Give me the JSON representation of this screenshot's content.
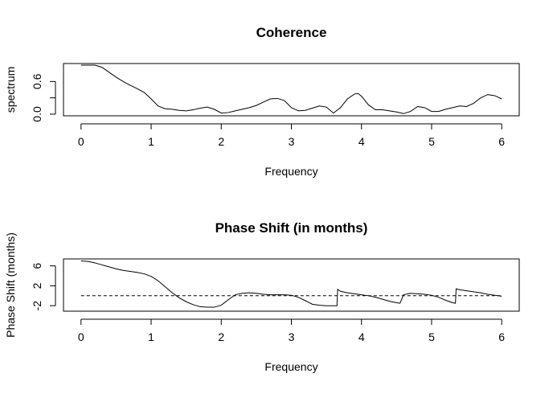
{
  "chart_data": [
    {
      "type": "line",
      "title": "Coherence",
      "xlabel": "Frequency",
      "ylabel": "spectrum",
      "xlim": [
        -0.25,
        6.25
      ],
      "ylim": [
        -0.03,
        0.93
      ],
      "xticks": [
        0,
        1,
        2,
        3,
        4,
        5,
        6
      ],
      "yticks": [
        0.0,
        0.3,
        0.6
      ],
      "ytick_labels": [
        "0.0",
        "",
        "0.6"
      ],
      "grid": false,
      "legend": "none",
      "series": [
        {
          "color": "#000000",
          "style": "solid",
          "x": [
            0.0,
            0.1,
            0.2,
            0.3,
            0.4,
            0.5,
            0.6,
            0.7,
            0.8,
            0.9,
            1.0,
            1.1,
            1.2,
            1.3,
            1.4,
            1.5,
            1.6,
            1.7,
            1.8,
            1.9,
            2.0,
            2.1,
            2.2,
            2.3,
            2.4,
            2.5,
            2.6,
            2.7,
            2.8,
            2.9,
            3.0,
            3.1,
            3.2,
            3.3,
            3.4,
            3.5,
            3.6,
            3.7,
            3.8,
            3.9,
            3.95,
            4.0,
            4.1,
            4.2,
            4.3,
            4.4,
            4.5,
            4.6,
            4.7,
            4.8,
            4.9,
            5.0,
            5.1,
            5.2,
            5.3,
            5.4,
            5.5,
            5.6,
            5.7,
            5.8,
            5.9,
            6.0
          ],
          "y": [
            0.9,
            0.9,
            0.9,
            0.86,
            0.77,
            0.68,
            0.6,
            0.53,
            0.47,
            0.4,
            0.28,
            0.15,
            0.1,
            0.09,
            0.07,
            0.06,
            0.08,
            0.11,
            0.13,
            0.09,
            0.02,
            0.03,
            0.06,
            0.09,
            0.12,
            0.16,
            0.22,
            0.28,
            0.29,
            0.25,
            0.12,
            0.06,
            0.07,
            0.11,
            0.15,
            0.13,
            0.02,
            0.12,
            0.28,
            0.37,
            0.38,
            0.33,
            0.17,
            0.08,
            0.08,
            0.06,
            0.04,
            0.01,
            0.05,
            0.14,
            0.12,
            0.05,
            0.05,
            0.09,
            0.12,
            0.15,
            0.14,
            0.2,
            0.3,
            0.36,
            0.34,
            0.28
          ]
        }
      ]
    },
    {
      "type": "line",
      "title": "Phase Shift (in months)",
      "xlabel": "Frequency",
      "ylabel": "Phase Shift (months)",
      "xlim": [
        -0.25,
        6.25
      ],
      "ylim": [
        -3.1,
        7.4
      ],
      "xticks": [
        0,
        1,
        2,
        3,
        4,
        5,
        6
      ],
      "yticks": [
        -2,
        2,
        6
      ],
      "ytick_labels": [
        "-2",
        "2",
        "6"
      ],
      "grid": false,
      "legend": "none",
      "series": [
        {
          "color": "#000000",
          "style": "solid",
          "x": [
            0.0,
            0.1,
            0.2,
            0.3,
            0.4,
            0.5,
            0.6,
            0.7,
            0.8,
            0.9,
            1.0,
            1.1,
            1.2,
            1.3,
            1.4,
            1.5,
            1.6,
            1.7,
            1.8,
            1.9,
            2.0,
            2.1,
            2.2,
            2.3,
            2.4,
            2.5,
            2.6,
            2.7,
            2.8,
            2.9,
            3.0,
            3.1,
            3.2,
            3.3,
            3.4,
            3.5,
            3.6,
            3.65,
            3.66,
            3.7,
            3.8,
            3.9,
            4.0,
            4.1,
            4.2,
            4.3,
            4.4,
            4.5,
            4.55,
            4.6,
            4.7,
            4.8,
            4.9,
            5.0,
            5.1,
            5.2,
            5.3,
            5.34,
            5.35,
            5.4,
            5.5,
            5.6,
            5.7,
            5.8,
            5.9,
            6.0
          ],
          "y": [
            7.0,
            6.9,
            6.6,
            6.2,
            5.8,
            5.4,
            5.1,
            4.9,
            4.7,
            4.4,
            3.9,
            3.0,
            1.8,
            0.6,
            -0.4,
            -1.2,
            -1.8,
            -2.2,
            -2.3,
            -2.3,
            -1.9,
            -0.8,
            0.2,
            0.5,
            0.6,
            0.5,
            0.3,
            0.2,
            0.2,
            0.2,
            0.1,
            -0.3,
            -1.0,
            -1.7,
            -1.9,
            -2.0,
            -2.0,
            -2.0,
            1.3,
            0.9,
            0.6,
            0.4,
            0.2,
            0.0,
            -0.3,
            -0.7,
            -1.1,
            -1.4,
            -1.5,
            0.2,
            0.5,
            0.4,
            0.3,
            0.1,
            -0.3,
            -0.9,
            -1.4,
            -1.5,
            1.4,
            1.2,
            1.0,
            0.8,
            0.6,
            0.3,
            0.1,
            -0.1
          ]
        },
        {
          "color": "#000000",
          "style": "dashed",
          "x": [
            0,
            6
          ],
          "y": [
            0,
            0
          ]
        }
      ]
    }
  ]
}
